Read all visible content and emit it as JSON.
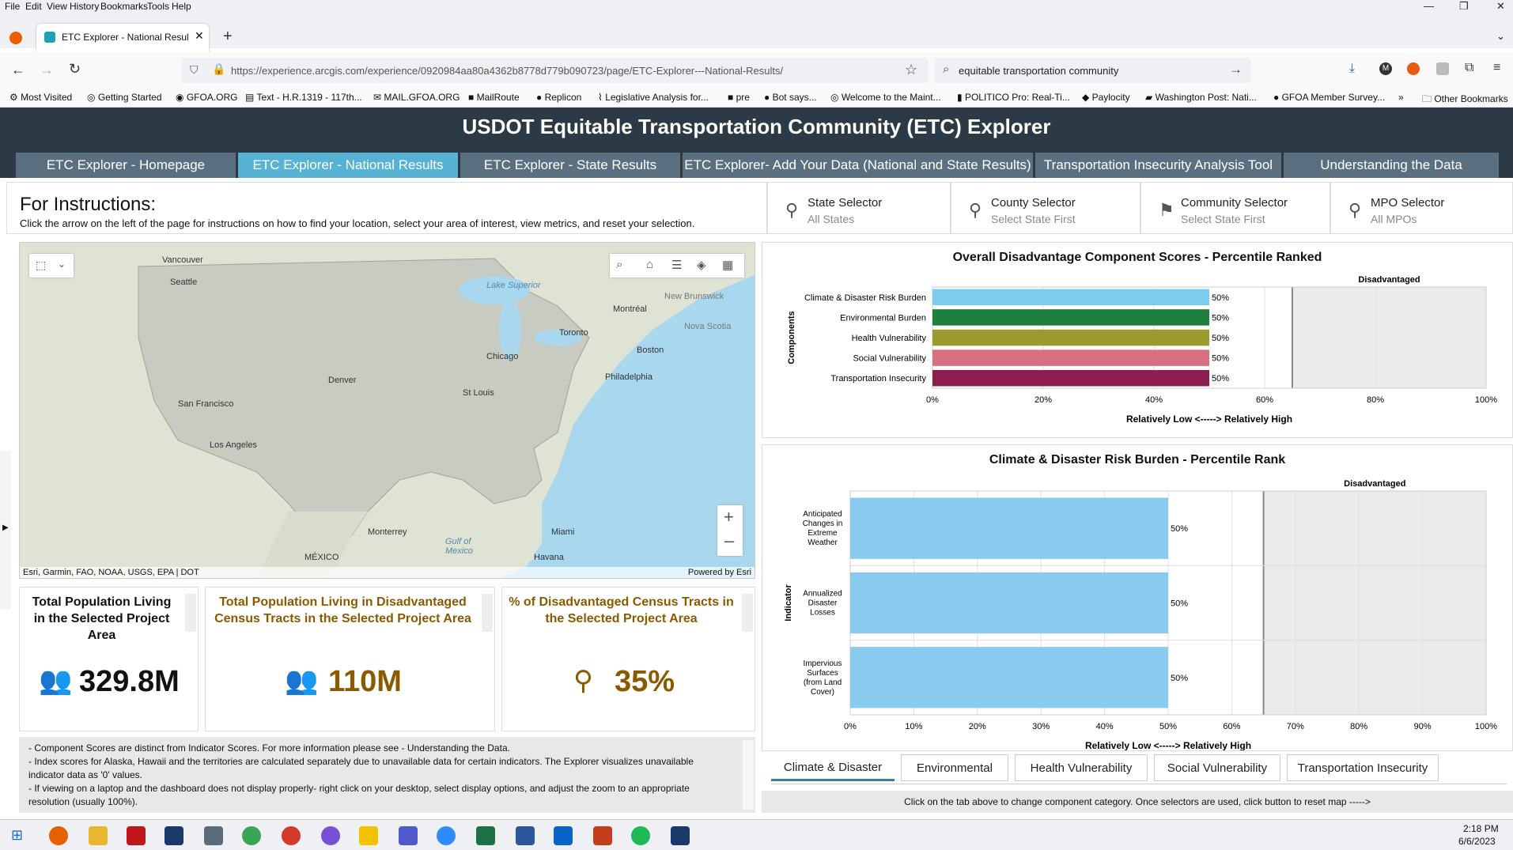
{
  "menu": [
    "File",
    "Edit",
    "View",
    "History",
    "Bookmarks",
    "Tools",
    "Help"
  ],
  "browser": {
    "tab_title": "ETC Explorer - National Results",
    "url": "https://experience.arcgis.com/experience/0920984aa80a4362b8778d779b090723/page/ETC-Explorer---National-Results/",
    "search_value": "equitable transportation community"
  },
  "bookmarks": [
    "Most Visited",
    "Getting Started",
    "GFOA.ORG",
    "Text - H.R.1319 - 117th...",
    "MAIL.GFOA.ORG",
    "MailRoute",
    "Replicon",
    "Legislative Analysis for...",
    "pre",
    "Bot says...",
    "Welcome to the Maint...",
    "POLITICO Pro: Real-Ti...",
    "Paylocity",
    "Washington Post: Nati...",
    "GFOA Member Survey...",
    "Other Bookmarks"
  ],
  "app": {
    "title": "USDOT Equitable Transportation Community (ETC) Explorer",
    "tabs": [
      "ETC Explorer - Homepage",
      "ETC Explorer - National Results",
      "ETC Explorer - State Results",
      "ETC Explorer- Add Your Data (National and State Results)",
      "Transportation Insecurity Analysis Tool",
      "Understanding the Data"
    ]
  },
  "instructions": {
    "title": "For Instructions:",
    "text": "Click the arrow on the left of the page for instructions on how to find your location, select your area of interest, view metrics, and reset your selection."
  },
  "selectors": [
    {
      "title": "State Selector",
      "sub": "All States"
    },
    {
      "title": "County Selector",
      "sub": "Select State First"
    },
    {
      "title": "Community Selector",
      "sub": "Select State First"
    },
    {
      "title": "MPO Selector",
      "sub": "All MPOs"
    }
  ],
  "map": {
    "attribution": "Esri, Garmin, FAO, NOAA, USGS, EPA | DOT",
    "powered": "Powered by Esri",
    "labels": [
      "Vancouver",
      "Seattle",
      "Lake Superior",
      "Montréal",
      "New Brunswick",
      "Nova Scotia",
      "Toronto",
      "Boston",
      "Chicago",
      "Denver",
      "St Louis",
      "Philadelphia",
      "San Francisco",
      "Los Angeles",
      "Monterrey",
      "Gulf of Mexico",
      "Miami",
      "MÉXICO",
      "Havana"
    ]
  },
  "stats": [
    {
      "title": "Total Population Living in the Selected Project Area",
      "value": "329.8M",
      "color": "#111111"
    },
    {
      "title": "Total Population Living in Disadvantaged Census Tracts in the Selected Project Area",
      "value": "110M",
      "color": "#8a5a00"
    },
    {
      "title": "% of Disadvantaged Census Tracts in the Selected Project Area",
      "value": "35%",
      "color": "#8a5a00"
    }
  ],
  "notes": [
    "- Component Scores are distinct from Indicator Scores. For more information please see - Understanding the Data.",
    "- Index scores for Alaska, Hawaii and the territories are calculated separately due to unavailable data for certain indicators. The Explorer visualizes unavailable indicator data as '0' values.",
    "- If viewing on a laptop and the dashboard does not display properly- right click on your desktop, select display options, and adjust the zoom to an appropriate resolution (usually 100%)."
  ],
  "chart_data": [
    {
      "type": "bar",
      "orientation": "horizontal",
      "title": "Overall Disadvantage Component Scores - Percentile Ranked",
      "categories": [
        "Climate & Disaster Risk Burden",
        "Environmental Burden",
        "Health Vulnerability",
        "Social Vulnerability",
        "Transportation Insecurity"
      ],
      "values": [
        50,
        50,
        50,
        50,
        50
      ],
      "data_labels": [
        "50%",
        "50%",
        "50%",
        "50%",
        "50%"
      ],
      "colors": [
        "#7ecbf0",
        "#1e7e3e",
        "#9a9a2e",
        "#d87080",
        "#8b1e4e"
      ],
      "xlim": [
        0,
        100
      ],
      "xticks": [
        "0%",
        "20%",
        "40%",
        "60%",
        "80%",
        "100%"
      ],
      "threshold": 65,
      "threshold_label": "Disadvantaged",
      "xlabel": "Relatively Low <-----> Relatively High",
      "ylabel": "Components"
    },
    {
      "type": "bar",
      "orientation": "horizontal",
      "title": "Climate & Disaster Risk Burden - Percentile Rank",
      "categories": [
        "Anticipated Changes in Extreme Weather",
        "Annualized Disaster Losses",
        "Impervious Surfaces (from Land Cover)"
      ],
      "values": [
        50,
        50,
        50
      ],
      "data_labels": [
        "50%",
        "50%",
        "50%"
      ],
      "colors": [
        "#88cbee",
        "#88cbee",
        "#88cbee"
      ],
      "xlim": [
        0,
        100
      ],
      "xticks": [
        "0%",
        "10%",
        "20%",
        "30%",
        "40%",
        "50%",
        "60%",
        "70%",
        "80%",
        "90%",
        "100%"
      ],
      "threshold": 65,
      "threshold_label": "Disadvantaged",
      "xlabel": "Relatively Low <-----> Relatively High",
      "ylabel": "Indicator"
    }
  ],
  "category_tabs": [
    "Climate & Disaster",
    "Environmental",
    "Health Vulnerability",
    "Social Vulnerability",
    "Transportation Insecurity"
  ],
  "footer_note": "Click on the tab above to change component category. Once selectors are used, click button to reset map ----->",
  "clock": {
    "time": "2:18 PM",
    "date": "6/6/2023"
  }
}
